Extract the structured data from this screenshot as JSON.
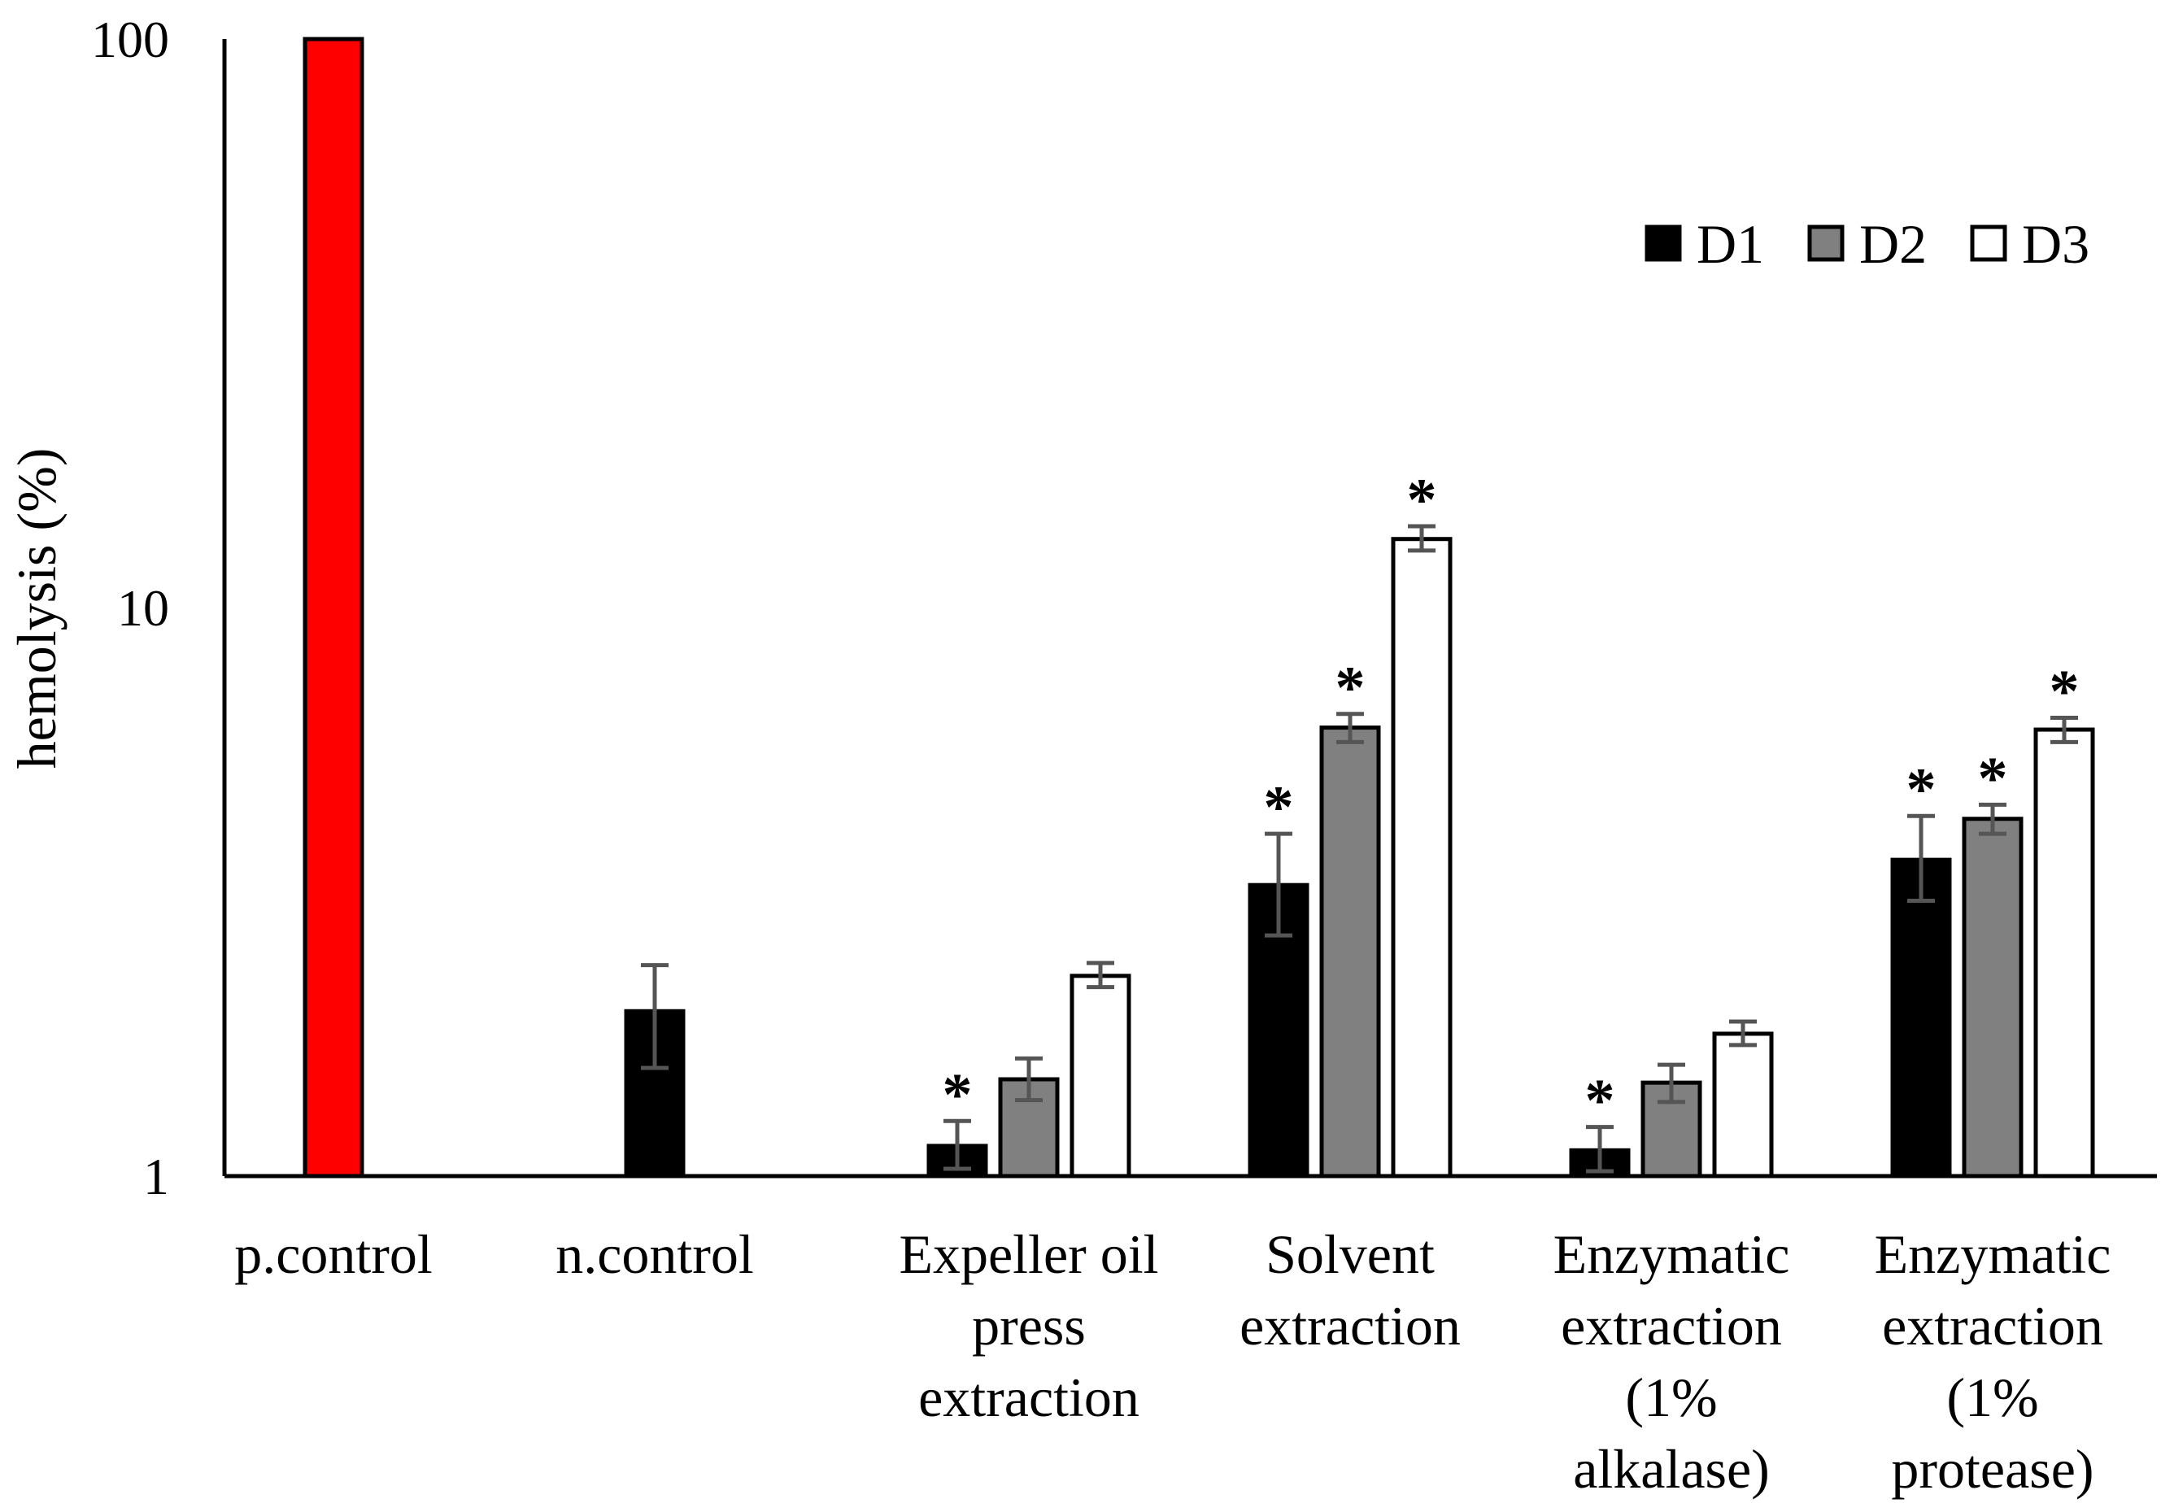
{
  "chart_data": {
    "type": "bar",
    "title": "",
    "xlabel": "",
    "ylabel": "hemolysis (%)",
    "yscale": "log",
    "ylim": [
      1,
      100
    ],
    "yticks": [
      {
        "value": 1,
        "label": "1"
      },
      {
        "value": 10,
        "label": "10"
      },
      {
        "value": 100,
        "label": "100"
      }
    ],
    "legend_position": "top-right",
    "categories": [
      {
        "id": "pcontrol",
        "lines": [
          "p.control"
        ]
      },
      {
        "id": "ncontrol",
        "lines": [
          "n.control"
        ]
      },
      {
        "id": "expeller",
        "lines": [
          "Expeller oil",
          "press",
          "extraction"
        ]
      },
      {
        "id": "solvent",
        "lines": [
          "Solvent",
          "extraction"
        ]
      },
      {
        "id": "alkalase",
        "lines": [
          "Enzymatic",
          "extraction",
          "(1%",
          "alkalase)"
        ]
      },
      {
        "id": "protease",
        "lines": [
          "Enzymatic",
          "extraction",
          "(1%",
          "protease)"
        ]
      }
    ],
    "controls": [
      {
        "category": "pcontrol",
        "value": 100,
        "color": "#ff0000",
        "error": null
      },
      {
        "category": "ncontrol",
        "value": 1.95,
        "color": "#000000",
        "error": [
          1.55,
          2.35
        ]
      }
    ],
    "series": [
      {
        "name": "D1",
        "color": "#000000",
        "values": [
          null,
          null,
          1.13,
          3.25,
          1.11,
          3.6
        ],
        "error_low": [
          null,
          null,
          1.03,
          2.65,
          1.02,
          3.05
        ],
        "error_high": [
          null,
          null,
          1.25,
          4.0,
          1.22,
          4.3
        ],
        "significant": [
          false,
          false,
          true,
          true,
          true,
          true
        ]
      },
      {
        "name": "D2",
        "color": "#808080",
        "values": [
          null,
          null,
          1.48,
          6.15,
          1.46,
          4.25
        ],
        "error_low": [
          null,
          null,
          1.36,
          5.8,
          1.35,
          4.0
        ],
        "error_high": [
          null,
          null,
          1.61,
          6.5,
          1.57,
          4.5
        ],
        "significant": [
          false,
          false,
          false,
          true,
          false,
          true
        ]
      },
      {
        "name": "D3",
        "color": "#ffffff",
        "values": [
          null,
          null,
          2.25,
          13.2,
          1.78,
          6.1
        ],
        "error_low": [
          null,
          null,
          2.15,
          12.6,
          1.7,
          5.8
        ],
        "error_high": [
          null,
          null,
          2.37,
          13.9,
          1.87,
          6.4
        ],
        "significant": [
          false,
          false,
          false,
          true,
          false,
          true
        ]
      }
    ],
    "significance_marker": "*"
  }
}
